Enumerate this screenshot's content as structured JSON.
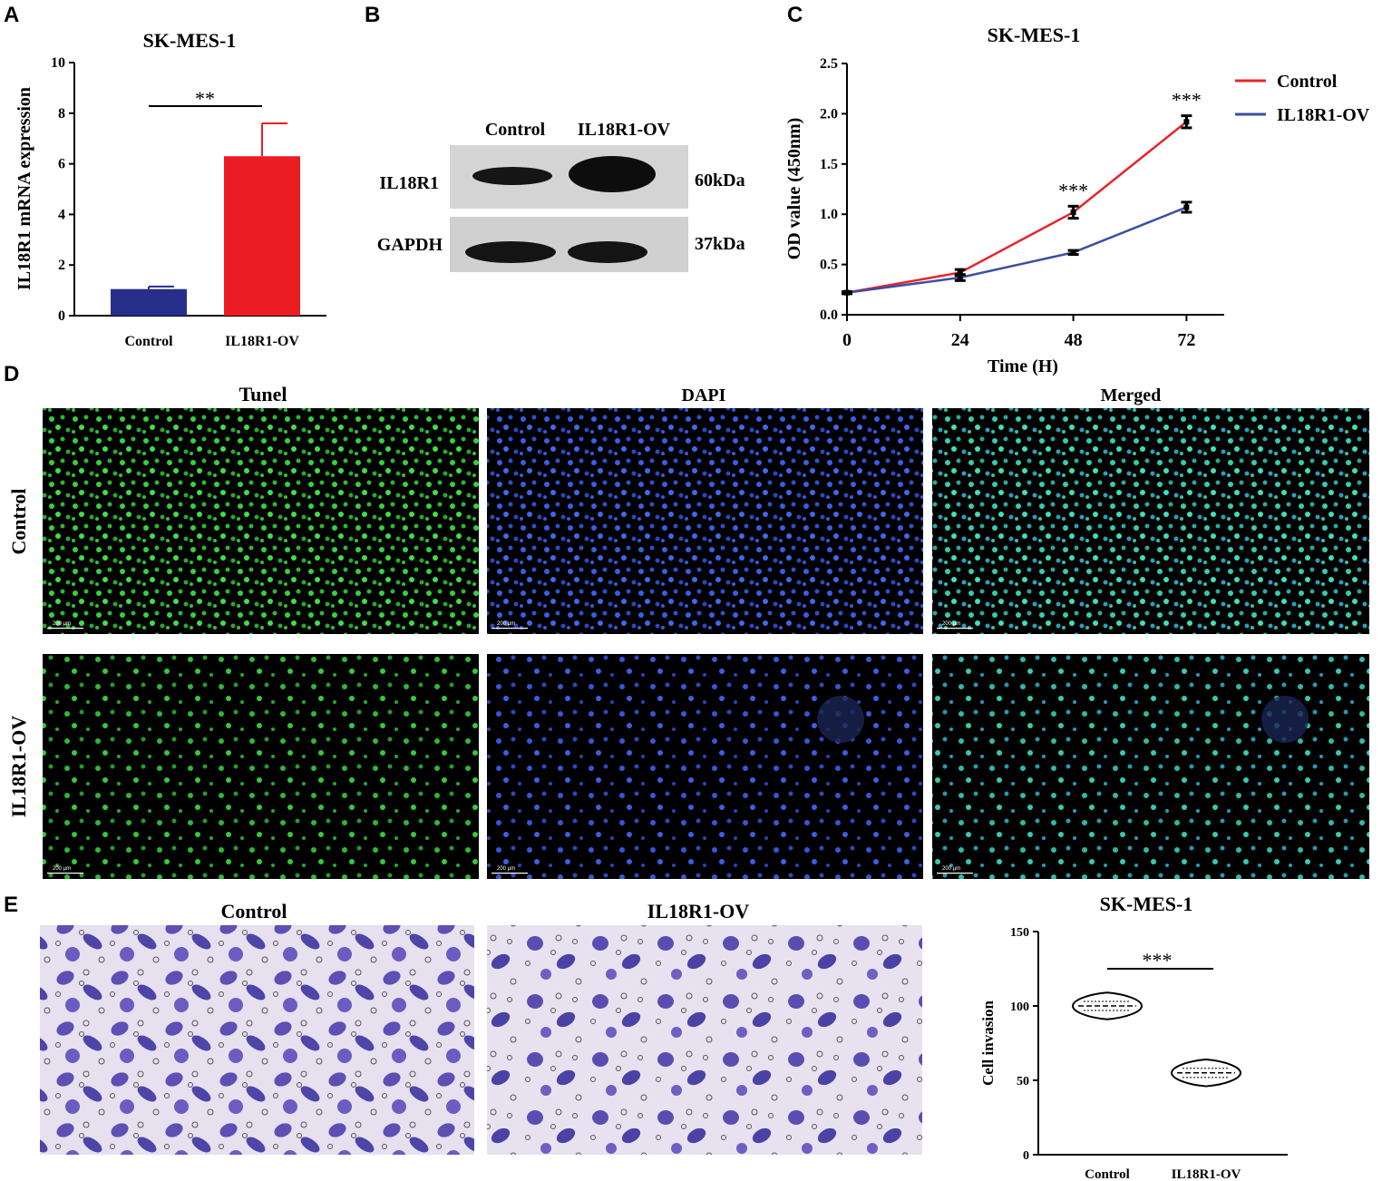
{
  "panels": {
    "A": {
      "letter": "A",
      "chart_data": {
        "type": "bar",
        "title": "SK-MES-1",
        "ylabel": "IL18R1 mRNA expression",
        "xlabel": "",
        "ylim": [
          0,
          10
        ],
        "yticks": [
          "0",
          "2",
          "4",
          "6",
          "8",
          "10"
        ],
        "categories": [
          "Control",
          "IL18R1-OV"
        ],
        "values": [
          1.05,
          6.3
        ],
        "errors": [
          0.1,
          1.3
        ],
        "colors": [
          "#272f8a",
          "#ec1c24"
        ],
        "significance": "**"
      }
    },
    "B": {
      "letter": "B",
      "lanes": [
        "Control",
        "IL18R1-OV"
      ],
      "rows": [
        {
          "protein": "IL18R1",
          "size": "60kDa"
        },
        {
          "protein": "GAPDH",
          "size": "37kDa"
        }
      ]
    },
    "C": {
      "letter": "C",
      "chart_data": {
        "type": "line",
        "title": "SK-MES-1",
        "xlabel": "Time (H)",
        "ylabel": "OD value (450nm)",
        "x": [
          0,
          24,
          48,
          72
        ],
        "xticks": [
          "0",
          "24",
          "48",
          "72"
        ],
        "xlim": [
          0,
          80
        ],
        "ylim": [
          0,
          2.5
        ],
        "yticks": [
          "0.0",
          "0.5",
          "1.0",
          "1.5",
          "2.0",
          "2.5"
        ],
        "series": [
          {
            "name": "Control",
            "color": "#e8242a",
            "values": [
              0.22,
              0.42,
              1.02,
              1.92
            ],
            "errors": [
              0.01,
              0.03,
              0.06,
              0.06
            ]
          },
          {
            "name": "IL18R1-OV",
            "color": "#3b4fa0",
            "values": [
              0.22,
              0.37,
              0.62,
              1.07
            ],
            "errors": [
              0.01,
              0.03,
              0.02,
              0.05
            ]
          }
        ],
        "annotations": [
          {
            "x": 48,
            "text": "***"
          },
          {
            "x": 72,
            "text": "***"
          }
        ],
        "legend_position": "top-right"
      }
    },
    "D": {
      "letter": "D",
      "columns": [
        "Tunel",
        "DAPI",
        "Merged"
      ],
      "rows": [
        "Control",
        "IL18R1-OV"
      ],
      "scale_bar": "200 µm",
      "stain_colors": {
        "Tunel": "#1fbf2a",
        "DAPI": "#2f4fd8",
        "Merged": "#2fc8a8"
      }
    },
    "E": {
      "letter": "E",
      "images": [
        "Control",
        "IL18R1-OV"
      ],
      "chart_data": {
        "type": "violin",
        "title": "SK-MES-1",
        "ylabel": "Cell invasion",
        "xlabel": "",
        "categories": [
          "Control",
          "IL18R1-OV"
        ],
        "medians": [
          100,
          55
        ],
        "ranges": [
          [
            91,
            109
          ],
          [
            46,
            64
          ]
        ],
        "ylim": [
          0,
          150
        ],
        "yticks": [
          "0",
          "50",
          "100",
          "150"
        ],
        "significance": "***"
      }
    }
  }
}
